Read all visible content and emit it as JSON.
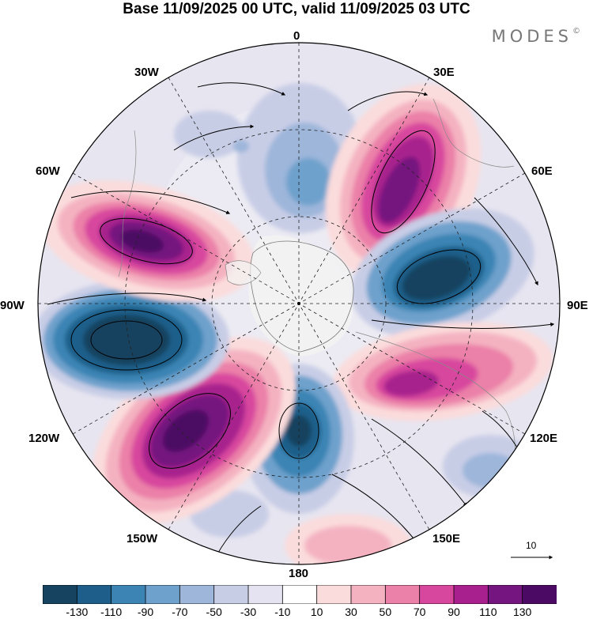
{
  "title": "Base 11/09/2025 00 UTC, valid 11/09/2025 03 UTC",
  "brand": "MODES",
  "lon_labels": {
    "n": "0",
    "ne": "30E",
    "ene": "60E",
    "e": "90E",
    "ese": "120E",
    "se": "150E",
    "s": "180",
    "sw": "150W",
    "wsw": "120W",
    "w": "90W",
    "wnw": "60W",
    "nw": "30W"
  },
  "reference_vector": "10",
  "colorbar": {
    "labels": [
      "-130",
      "-110",
      "-90",
      "-70",
      "-50",
      "-30",
      "-10",
      "10",
      "30",
      "50",
      "70",
      "90",
      "110",
      "130"
    ],
    "colors": [
      "#16435f",
      "#1d5f8a",
      "#3b84b4",
      "#6ea1cc",
      "#9db6da",
      "#c8cde6",
      "#e5e3f1",
      "#ffffff",
      "#fbdcdc",
      "#f4b2c1",
      "#eb80a8",
      "#d8479e",
      "#a8208d",
      "#75157f",
      "#4b0a64"
    ]
  },
  "colors": {
    "land_gray": "#e4e4e4",
    "antarctica": "#f2f2f2"
  }
}
